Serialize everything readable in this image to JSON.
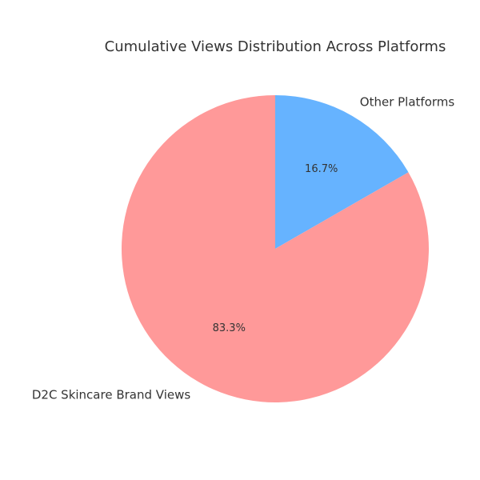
{
  "chart_data": {
    "type": "pie",
    "title": "Cumulative Views Distribution Across Platforms",
    "categories": [
      "Other Platforms",
      "D2C Skincare Brand Views"
    ],
    "values": [
      16.7,
      83.3
    ],
    "percent_labels": [
      "16.7%",
      "83.3%"
    ],
    "colors": [
      "#66b3ff",
      "#ff9999"
    ],
    "start_angle": "12 o'clock, clockwise",
    "legend": "none"
  }
}
